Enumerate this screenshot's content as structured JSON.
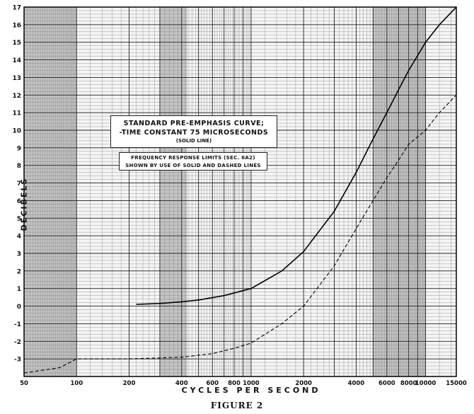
{
  "chart_data": {
    "type": "line",
    "title": "",
    "xlabel": "CYCLES PER SECOND",
    "ylabel": "DECIBELS",
    "x_scale": "log",
    "xlim": [
      50,
      15000
    ],
    "ylim": [
      -4,
      17
    ],
    "x_ticks": [
      50,
      100,
      200,
      300,
      400,
      500,
      600,
      700,
      800,
      900,
      1000,
      2000,
      3000,
      4000,
      5000,
      6000,
      7000,
      8000,
      9000,
      10000,
      15000
    ],
    "x_tick_labels": [
      "50",
      "100",
      "200",
      "",
      "400",
      "",
      "600",
      "",
      "800",
      "",
      "1000",
      "2000",
      "",
      "4000",
      "",
      "6000",
      "",
      "8000",
      "",
      "10000",
      "15000"
    ],
    "y_ticks": [
      -3,
      -2,
      -1,
      0,
      1,
      2,
      3,
      4,
      5,
      6,
      7,
      8,
      9,
      10,
      11,
      12,
      13,
      14,
      15,
      16,
      17
    ],
    "y_tick_labels": [
      "-3",
      "-2",
      "-1",
      "0",
      "1",
      "2",
      "3",
      "4",
      "5",
      "6",
      "7",
      "8",
      "9",
      "10",
      "11",
      "12",
      "13",
      "14",
      "15",
      "16",
      "17"
    ],
    "grid": true,
    "series": [
      {
        "style": "solid",
        "x": [
          220,
          300,
          400,
          500,
          700,
          1000,
          1500,
          2000,
          3000,
          4000,
          5000,
          6000,
          7000,
          8000,
          10000,
          12000,
          15000
        ],
        "y": [
          0.1,
          0.15,
          0.25,
          0.35,
          0.6,
          1.0,
          2.0,
          3.1,
          5.4,
          7.6,
          9.5,
          11.0,
          12.3,
          13.4,
          15.0,
          16.0,
          17.0
        ]
      },
      {
        "style": "dashed",
        "x": [
          50,
          80,
          100,
          200,
          400,
          600,
          800,
          1000,
          1500,
          2000,
          3000,
          4000,
          5000,
          6000,
          7000,
          8000,
          10000,
          12000,
          15000
        ],
        "y": [
          -3.8,
          -3.5,
          -3.0,
          -3.0,
          -2.9,
          -2.7,
          -2.4,
          -2.1,
          -1.0,
          0.0,
          2.3,
          4.4,
          6.0,
          7.3,
          8.3,
          9.2,
          10.0,
          11.0,
          12.0
        ]
      }
    ],
    "annotations": [
      "STANDARD PRE-EMPHASIS CURVE;",
      "-TIME CONSTANT 75 MICROSECONDS",
      "(SOLID LINE)",
      "FREQUENCY RESPONSE LIMITS (SEC. 6A2)",
      "SHOWN BY USE OF SOLID AND DASHED LINES"
    ],
    "caption": "FIGURE 2"
  }
}
